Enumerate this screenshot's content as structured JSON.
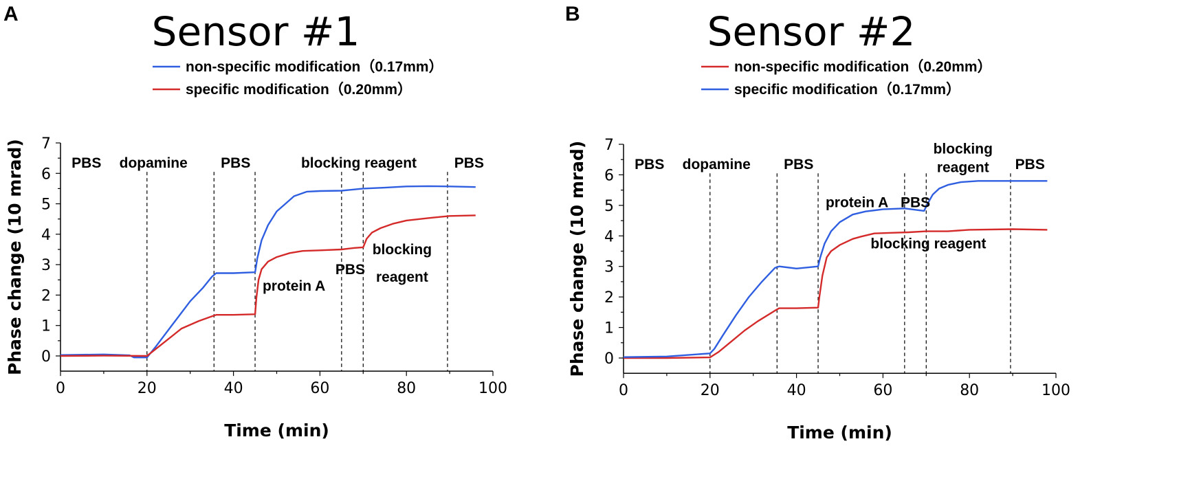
{
  "chart_data": [
    {
      "panel_label": "A",
      "title": "Sensor #1",
      "type": "line",
      "xlabel": "Time (min)",
      "ylabel": "Phase change (10 mrad)",
      "xlim": [
        0,
        100
      ],
      "ylim": [
        -0.5,
        7
      ],
      "xticks": [
        0,
        20,
        40,
        60,
        80,
        100
      ],
      "yticks": [
        0,
        1,
        2,
        3,
        4,
        5,
        6,
        7
      ],
      "grid": false,
      "legend_placement": "top",
      "series": [
        {
          "name": "non-specific modification（0.17mm）",
          "color": "#2f5fe0",
          "x": [
            0,
            10,
            16,
            17,
            20,
            22,
            26,
            30,
            33,
            35,
            36,
            40,
            45,
            45.5,
            46.5,
            48,
            50,
            52,
            54,
            57,
            60,
            65,
            70,
            75,
            80,
            85,
            90,
            96
          ],
          "y": [
            0.03,
            0.05,
            0.02,
            -0.05,
            -0.05,
            0.3,
            1.05,
            1.8,
            2.25,
            2.6,
            2.72,
            2.72,
            2.75,
            3.2,
            3.8,
            4.3,
            4.75,
            5.0,
            5.25,
            5.4,
            5.42,
            5.43,
            5.5,
            5.53,
            5.57,
            5.58,
            5.57,
            5.55
          ]
        },
        {
          "name": "specific modification（0.20mm）",
          "color": "#d42a2a",
          "x": [
            0,
            10,
            20,
            24,
            28,
            32,
            35,
            36,
            40,
            45,
            45.3,
            45.8,
            46.5,
            48,
            50,
            53,
            56,
            60,
            65,
            68,
            70,
            70.8,
            72,
            74,
            77,
            80,
            85,
            90,
            96
          ],
          "y": [
            0.0,
            0.01,
            0.0,
            0.45,
            0.9,
            1.15,
            1.3,
            1.35,
            1.35,
            1.37,
            1.9,
            2.5,
            2.85,
            3.1,
            3.25,
            3.38,
            3.45,
            3.47,
            3.5,
            3.55,
            3.57,
            3.85,
            4.05,
            4.2,
            4.35,
            4.45,
            4.53,
            4.6,
            4.62
          ]
        }
      ],
      "vlines": [
        20,
        35.5,
        45,
        65,
        70,
        89.5
      ],
      "annotations": [
        {
          "text": "PBS",
          "x": 6,
          "y": 6.35
        },
        {
          "text": "dopamine",
          "x": 21.5,
          "y": 6.35
        },
        {
          "text": "PBS",
          "x": 40.5,
          "y": 6.35
        },
        {
          "text": "blocking reagent",
          "x": 69,
          "y": 6.35
        },
        {
          "text": "PBS",
          "x": 94.5,
          "y": 6.35
        },
        {
          "text": "protein A",
          "x": 54,
          "y": 2.3
        },
        {
          "text": "PBS",
          "x": 67,
          "y": 2.85
        },
        {
          "text": "blocking",
          "x": 79,
          "y": 3.5
        },
        {
          "text": "reagent",
          "x": 79,
          "y": 2.6
        }
      ]
    },
    {
      "panel_label": "B",
      "title": "Sensor #2",
      "type": "line",
      "xlabel": "Time (min)",
      "ylabel": "Phase change (10 mrad)",
      "xlim": [
        0,
        100
      ],
      "ylim": [
        -0.5,
        7
      ],
      "xticks": [
        0,
        20,
        40,
        60,
        80,
        100
      ],
      "yticks": [
        0,
        1,
        2,
        3,
        4,
        5,
        6,
        7
      ],
      "grid": false,
      "legend_placement": "top",
      "series": [
        {
          "name": "non-specific modification（0.20mm）",
          "color": "#d42a2a",
          "x": [
            0,
            10,
            20,
            22,
            25,
            28,
            31,
            35,
            36,
            40,
            45,
            45.3,
            46,
            47,
            48,
            50,
            53,
            55,
            58,
            62,
            66,
            70,
            75,
            80,
            90,
            98
          ],
          "y": [
            0.0,
            0.0,
            0.02,
            0.2,
            0.55,
            0.9,
            1.2,
            1.55,
            1.63,
            1.63,
            1.65,
            2.0,
            2.7,
            3.3,
            3.5,
            3.7,
            3.9,
            3.98,
            4.08,
            4.1,
            4.12,
            4.15,
            4.15,
            4.2,
            4.22,
            4.2
          ]
        },
        {
          "name": "specific modification（0.17mm）",
          "color": "#2f5fe0",
          "x": [
            0,
            10,
            20,
            21,
            23,
            26,
            29,
            32,
            35,
            36,
            40,
            45,
            45.5,
            46.5,
            48,
            50,
            53,
            56,
            60,
            65,
            69.5,
            70.3,
            71.5,
            73,
            75,
            78,
            82,
            90,
            98
          ],
          "y": [
            0.03,
            0.05,
            0.15,
            0.3,
            0.75,
            1.4,
            2.0,
            2.5,
            2.95,
            3.0,
            2.93,
            3.0,
            3.3,
            3.75,
            4.15,
            4.45,
            4.7,
            4.8,
            4.87,
            4.9,
            4.82,
            5.05,
            5.35,
            5.55,
            5.67,
            5.76,
            5.8,
            5.8,
            5.8
          ]
        }
      ],
      "vlines": [
        20,
        35.5,
        45,
        65,
        70,
        89.5
      ],
      "annotations": [
        {
          "text": "PBS",
          "x": 6,
          "y": 6.35
        },
        {
          "text": "dopamine",
          "x": 21.5,
          "y": 6.35
        },
        {
          "text": "PBS",
          "x": 40.5,
          "y": 6.35
        },
        {
          "text": "protein A",
          "x": 54,
          "y": 5.1
        },
        {
          "text": "PBS",
          "x": 67.5,
          "y": 5.1
        },
        {
          "text": "blocking",
          "x": 78.5,
          "y": 6.85
        },
        {
          "text": "reagent",
          "x": 78.5,
          "y": 6.25
        },
        {
          "text": "PBS",
          "x": 94,
          "y": 6.35
        },
        {
          "text": "blocking reagent",
          "x": 70.5,
          "y": 3.75
        }
      ]
    }
  ]
}
